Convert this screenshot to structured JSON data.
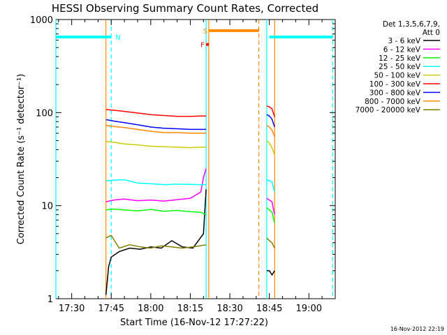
{
  "chart_data": {
    "type": "line",
    "title": "HESSI Observing Summary Count Rates, Corrected",
    "xlabel": "Start Time (16-Nov-12 17:27:22)",
    "ylabel": "Corrected Count Rate (s⁻¹ detector⁻¹)",
    "y_scale": "log",
    "ylim": [
      1,
      1000
    ],
    "xlim": [
      "17:24",
      "19:10"
    ],
    "x_ticks": [
      "17:30",
      "17:45",
      "18:00",
      "18:15",
      "18:30",
      "18:45",
      "19:00"
    ],
    "y_ticks": [
      "1",
      "10",
      "100",
      "1000"
    ],
    "footer": "16-Nov-2012 22:19",
    "legend_position": "top-right",
    "legend_header": [
      "Det 1,3,5,6,7,9,",
      "Att 0"
    ],
    "series": [
      {
        "name": "3 - 6 keV",
        "color": "#000000",
        "segments": [
          {
            "x": [
              "17:43",
              "17:44",
              "17:45",
              "17:48",
              "17:52",
              "17:56",
              "18:00",
              "18:04",
              "18:08",
              "18:12",
              "18:16",
              "18:20",
              "18:21"
            ],
            "y": [
              1.1,
              2.2,
              2.8,
              3.2,
              3.5,
              3.4,
              3.6,
              3.5,
              4.2,
              3.6,
              3.5,
              5.0,
              15
            ]
          },
          {
            "x": [
              "18:44",
              "18:45",
              "18:46",
              "18:47"
            ],
            "y": [
              2.0,
              2.0,
              1.8,
              2.0
            ]
          }
        ]
      },
      {
        "name": "6 - 12 keV",
        "color": "#ff00ff",
        "segments": [
          {
            "x": [
              "17:43",
              "17:46",
              "17:50",
              "17:55",
              "18:00",
              "18:05",
              "18:10",
              "18:15",
              "18:19",
              "18:20",
              "18:21"
            ],
            "y": [
              11,
              11.5,
              11.8,
              11.3,
              11.5,
              11.2,
              11.6,
              12.0,
              14,
              20,
              25
            ]
          },
          {
            "x": [
              "18:44",
              "18:45",
              "18:46",
              "18:47"
            ],
            "y": [
              12,
              11.5,
              11,
              8
            ]
          }
        ]
      },
      {
        "name": "12 - 25 keV",
        "color": "#00ff00",
        "segments": [
          {
            "x": [
              "17:43",
              "17:46",
              "17:50",
              "17:55",
              "18:00",
              "18:05",
              "18:10",
              "18:15",
              "18:19",
              "18:21"
            ],
            "y": [
              9,
              9.2,
              9.0,
              8.8,
              9.1,
              8.7,
              8.9,
              8.6,
              8.5,
              8.0
            ]
          },
          {
            "x": [
              "18:44",
              "18:45",
              "18:46",
              "18:47"
            ],
            "y": [
              9.5,
              9.0,
              8.5,
              6.5
            ]
          }
        ]
      },
      {
        "name": "25 - 50 keV",
        "color": "#00ffff",
        "segments": [
          {
            "x": [
              "17:43",
              "17:46",
              "17:50",
              "17:55",
              "18:00",
              "18:05",
              "18:10",
              "18:15",
              "18:19",
              "18:21"
            ],
            "y": [
              18.5,
              18.8,
              19.0,
              17.5,
              17.2,
              16.8,
              17.0,
              16.9,
              16.8,
              16.8
            ]
          },
          {
            "x": [
              "18:44",
              "18:45",
              "18:46",
              "18:47"
            ],
            "y": [
              19,
              18.5,
              18,
              14
            ]
          }
        ]
      },
      {
        "name": "50 - 100 keV",
        "color": "#cccc00",
        "segments": [
          {
            "x": [
              "17:43",
              "17:46",
              "17:50",
              "17:55",
              "18:00",
              "18:05",
              "18:10",
              "18:15",
              "18:19",
              "18:21"
            ],
            "y": [
              49,
              48,
              46,
              45,
              43.5,
              43,
              42.5,
              42,
              42.5,
              42.5
            ]
          },
          {
            "x": [
              "18:44",
              "18:45",
              "18:46",
              "18:47"
            ],
            "y": [
              50,
              47,
              42,
              35
            ]
          }
        ]
      },
      {
        "name": "100 - 300 keV",
        "color": "#ff0000",
        "segments": [
          {
            "x": [
              "17:43",
              "17:46",
              "17:50",
              "17:55",
              "18:00",
              "18:05",
              "18:10",
              "18:15",
              "18:19",
              "18:21"
            ],
            "y": [
              108,
              106,
              103,
              99,
              95,
              93,
              91,
              91,
              92,
              92
            ]
          },
          {
            "x": [
              "18:44",
              "18:45",
              "18:46",
              "18:47"
            ],
            "y": [
              118,
              115,
              110,
              90
            ]
          }
        ]
      },
      {
        "name": "300 - 800 keV",
        "color": "#0000ff",
        "segments": [
          {
            "x": [
              "17:43",
              "17:46",
              "17:50",
              "17:55",
              "18:00",
              "18:05",
              "18:10",
              "18:15",
              "18:19",
              "18:21"
            ],
            "y": [
              84,
              81,
              78,
              74,
              70,
              68,
              67,
              66,
              66,
              66
            ]
          },
          {
            "x": [
              "18:44",
              "18:45",
              "18:46",
              "18:47"
            ],
            "y": [
              95,
              92,
              85,
              70
            ]
          }
        ]
      },
      {
        "name": "800 - 7000 keV",
        "color": "#ff8800",
        "segments": [
          {
            "x": [
              "17:43",
              "17:46",
              "17:50",
              "17:55",
              "18:00",
              "18:05",
              "18:10",
              "18:15",
              "18:19",
              "18:21"
            ],
            "y": [
              73,
              71,
              69,
              66,
              63,
              61,
              61,
              60,
              60,
              60
            ]
          },
          {
            "x": [
              "18:44",
              "18:45",
              "18:46",
              "18:47"
            ],
            "y": [
              73,
              70,
              65,
              55
            ]
          }
        ]
      },
      {
        "name": "7000 - 20000 keV",
        "color": "#808000",
        "segments": [
          {
            "x": [
              "17:43",
              "17:45",
              "17:48",
              "17:52",
              "17:56",
              "18:00",
              "18:04",
              "18:08",
              "18:12",
              "18:16",
              "18:21"
            ],
            "y": [
              4.5,
              4.8,
              3.5,
              3.8,
              3.6,
              3.5,
              3.7,
              3.6,
              3.5,
              3.6,
              3.8
            ]
          },
          {
            "x": [
              "18:44",
              "18:45",
              "18:46",
              "18:47"
            ],
            "y": [
              4.5,
              4.2,
              4.0,
              3.5
            ]
          }
        ]
      }
    ],
    "flags": [
      {
        "label": "N",
        "color": "#00ffff",
        "y": 650,
        "segments": [
          [
            "17:24",
            "17:45"
          ],
          [
            "18:45",
            "19:09"
          ]
        ]
      },
      {
        "label": "S",
        "color": "#ff8800",
        "y": 760,
        "segments": [
          [
            "18:22",
            "18:41"
          ]
        ]
      },
      {
        "label": "F",
        "color": "#ff0000",
        "y": 540,
        "segments": [
          [
            "18:21",
            "18:22"
          ]
        ]
      }
    ],
    "vertical_markers": [
      {
        "x": "17:24",
        "color": "#00ffff",
        "style": "solid"
      },
      {
        "x": "17:45",
        "color": "#00ffff",
        "style": "dashed"
      },
      {
        "x": "17:43",
        "color": "#ff8800",
        "style": "solid"
      },
      {
        "x": "18:21",
        "color": "#00ffff",
        "style": "solid"
      },
      {
        "x": "18:22",
        "color": "#ff8800",
        "style": "solid"
      },
      {
        "x": "18:41",
        "color": "#ff8800",
        "style": "dashed"
      },
      {
        "x": "18:44",
        "color": "#00ffff",
        "style": "solid"
      },
      {
        "x": "18:47",
        "color": "#ff8800",
        "style": "solid"
      },
      {
        "x": "19:09",
        "color": "#00ffff",
        "style": "dashed"
      }
    ]
  }
}
